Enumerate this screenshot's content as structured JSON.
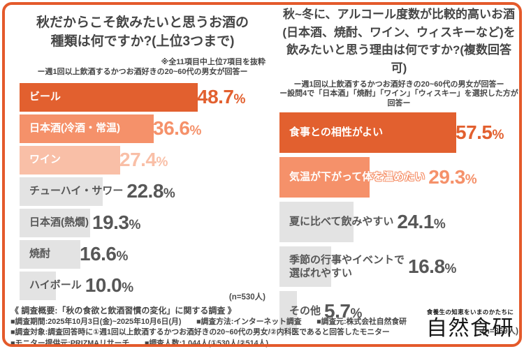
{
  "frame": {
    "border_color": "#E45A2B",
    "background_color": "#FFFFFF"
  },
  "chart_data": [
    {
      "type": "bar",
      "title": "秋だからこそ飲みたいと思うお酒の\n種類は何ですか?(上位3つまで)",
      "note": "※全11項目中上位7項目を抜粋",
      "subtitles": [
        "ー週1回以上飲酒するかつお酒好きの20~60代の男女が回答ー"
      ],
      "categories": [
        "ビール",
        "日本酒(冷酒・常温)",
        "ワイン",
        "チューハイ・サワー",
        "日本酒(熱燗)",
        "焼酎",
        "ハイボール"
      ],
      "values": [
        48.7,
        36.6,
        27.4,
        22.8,
        19.3,
        16.6,
        10.0
      ],
      "unit": "%",
      "n_label": "(n=530人)",
      "xlim": [
        0,
        55
      ],
      "legend": "none",
      "grid": false,
      "bar_colors": [
        "#E2602F",
        "#F5916A",
        "#F9BFA7",
        "#E3E3E3",
        "#E3E3E3",
        "#E3E3E3",
        "#E3E3E3"
      ],
      "label_colors": [
        "#FFFFFF",
        "#FFFFFF",
        "#FFFFFF",
        "#575757",
        "#575757",
        "#575757",
        "#575757"
      ],
      "value_colors": [
        "#E2602F",
        "#F5916A",
        "#F9BFA7",
        "#575757",
        "#575757",
        "#575757",
        "#575757"
      ],
      "label_halo": [
        false,
        false,
        false,
        false,
        false,
        false,
        false
      ]
    },
    {
      "type": "bar",
      "title": "秋~冬に、アルコール度数が比較的高いお酒\n(日本酒、焼酎、ワイン、ウィスキーなど)を\n飲みたいと思う理由は何ですか?(複数回答可)",
      "subtitles": [
        "ー週1回以上飲酒するかつお酒好きの20~60代の男女が回答ー",
        "ー設問4で「日本酒」「焼酎」「ワイン」「ウィスキー」を選択した方が回答ー"
      ],
      "categories": [
        "食事との相性がよい",
        "気温が下がって体を温めたい",
        "夏に比べて飲みやすい",
        "季節の行事やイベントで\n選ばれやすい",
        "その他"
      ],
      "values": [
        57.5,
        29.3,
        24.1,
        16.8,
        5.7
      ],
      "unit": "%",
      "n_label": "(n=369人)",
      "xlim": [
        0,
        65
      ],
      "legend": "none",
      "grid": false,
      "bar_colors": [
        "#E2602F",
        "#F5916A",
        "#E3E3E3",
        "#E3E3E3",
        "#E3E3E3"
      ],
      "label_colors": [
        "#FFFFFF",
        "#FFFFFF",
        "#575757",
        "#575757",
        "#575757"
      ],
      "value_colors": [
        "#E2602F",
        "#F5916A",
        "#575757",
        "#575757",
        "#575757"
      ],
      "label_halo": [
        false,
        true,
        false,
        false,
        false
      ]
    }
  ],
  "survey_overview": {
    "heading": "《 調査概要:「秋の食欲と飲酒習慣の変化」に関する調査 》",
    "lines": [
      "■調査期間:2025年10月3日(金)~2025年10月6日(月)　　■調査方法:インターネット調査　　■調査元:株式会社自然食研",
      "■調査対象:調査回答時に①週1回以上飲酒するかつお酒好きの20~60代の男女/②内科医であると回答したモニター",
      "■モニター提供元:PRIZMAリサーチ　　■調査人数:1,044人(①530人/②514人)"
    ]
  },
  "logo": {
    "tagline": "食養生の知恵をいまのかたちに",
    "name": "自然食研"
  }
}
